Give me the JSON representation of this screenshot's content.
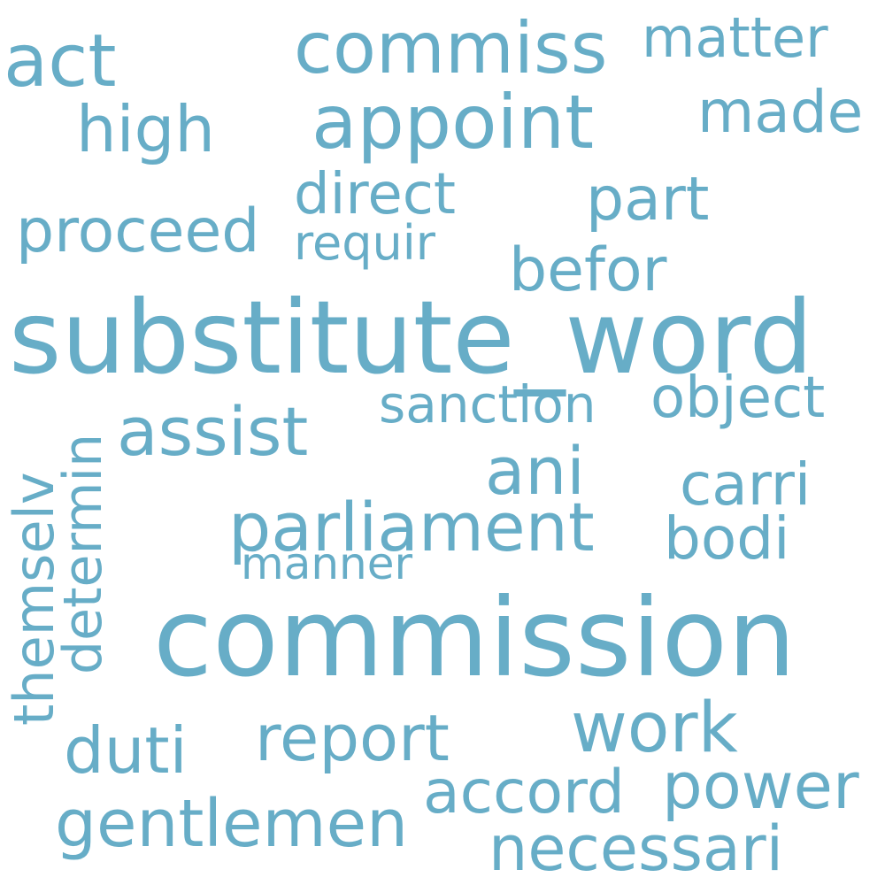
{
  "word_cloud": {
    "color": "#67adc7",
    "background": "#ffffff",
    "words": {
      "substitute_word": "substitute_word",
      "commission": "commission",
      "commiss": "commiss",
      "appoint": "appoint",
      "act": "act",
      "high": "high",
      "matter": "matter",
      "made": "made",
      "direct": "direct",
      "part": "part",
      "proceed": "proceed",
      "requir": "requir",
      "befor": "befor",
      "assist": "assist",
      "sanction": "sanction",
      "object": "object",
      "ani": "ani",
      "carri": "carri",
      "parliament": "parliament",
      "bodi": "bodi",
      "manner": "manner",
      "themselv": "themselv",
      "determin": "determin",
      "work": "work",
      "report": "report",
      "duti": "duti",
      "power": "power",
      "accord": "accord",
      "gentlemen": "gentlemen",
      "necessari": "necessari"
    }
  }
}
